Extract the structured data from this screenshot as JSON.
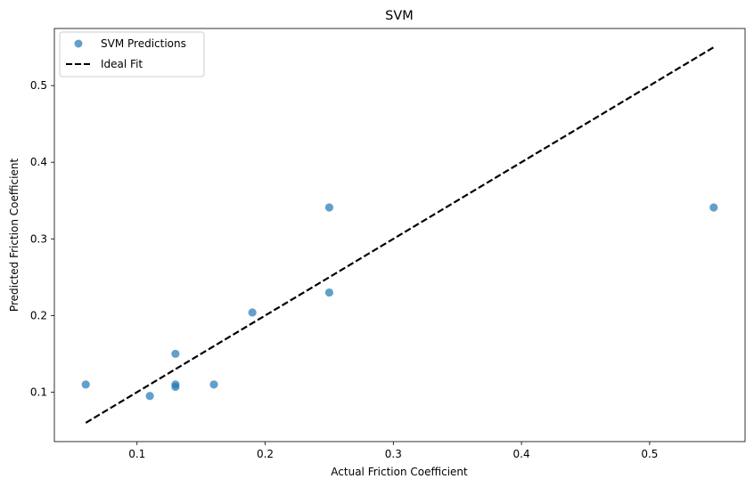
{
  "chart_data": {
    "type": "scatter",
    "title": "SVM",
    "xlabel": "Actual Friction Coefficient",
    "ylabel": "Predicted Friction Coefficient",
    "xlim": [
      0.0355,
      0.5745
    ],
    "ylim": [
      0.0355,
      0.5745
    ],
    "xticks": [
      "0.1",
      "0.2",
      "0.3",
      "0.4",
      "0.5"
    ],
    "yticks": [
      "0.1",
      "0.2",
      "0.3",
      "0.4",
      "0.5"
    ],
    "xtick_values": [
      0.1,
      0.2,
      0.3,
      0.4,
      0.5
    ],
    "ytick_values": [
      0.1,
      0.2,
      0.3,
      0.4,
      0.5
    ],
    "grid": false,
    "legend_position": "top-left",
    "series": [
      {
        "name": "SVM Predictions",
        "kind": "scatter",
        "color": "#1f77b4",
        "points": [
          {
            "x": 0.06,
            "y": 0.11
          },
          {
            "x": 0.11,
            "y": 0.095
          },
          {
            "x": 0.13,
            "y": 0.15
          },
          {
            "x": 0.13,
            "y": 0.11
          },
          {
            "x": 0.13,
            "y": 0.107
          },
          {
            "x": 0.16,
            "y": 0.11
          },
          {
            "x": 0.19,
            "y": 0.204
          },
          {
            "x": 0.25,
            "y": 0.341
          },
          {
            "x": 0.25,
            "y": 0.23
          },
          {
            "x": 0.55,
            "y": 0.341
          }
        ]
      },
      {
        "name": "Ideal Fit",
        "kind": "line",
        "style": "dashed",
        "color": "#000000",
        "points": [
          {
            "x": 0.06,
            "y": 0.06
          },
          {
            "x": 0.55,
            "y": 0.55
          }
        ]
      }
    ]
  }
}
